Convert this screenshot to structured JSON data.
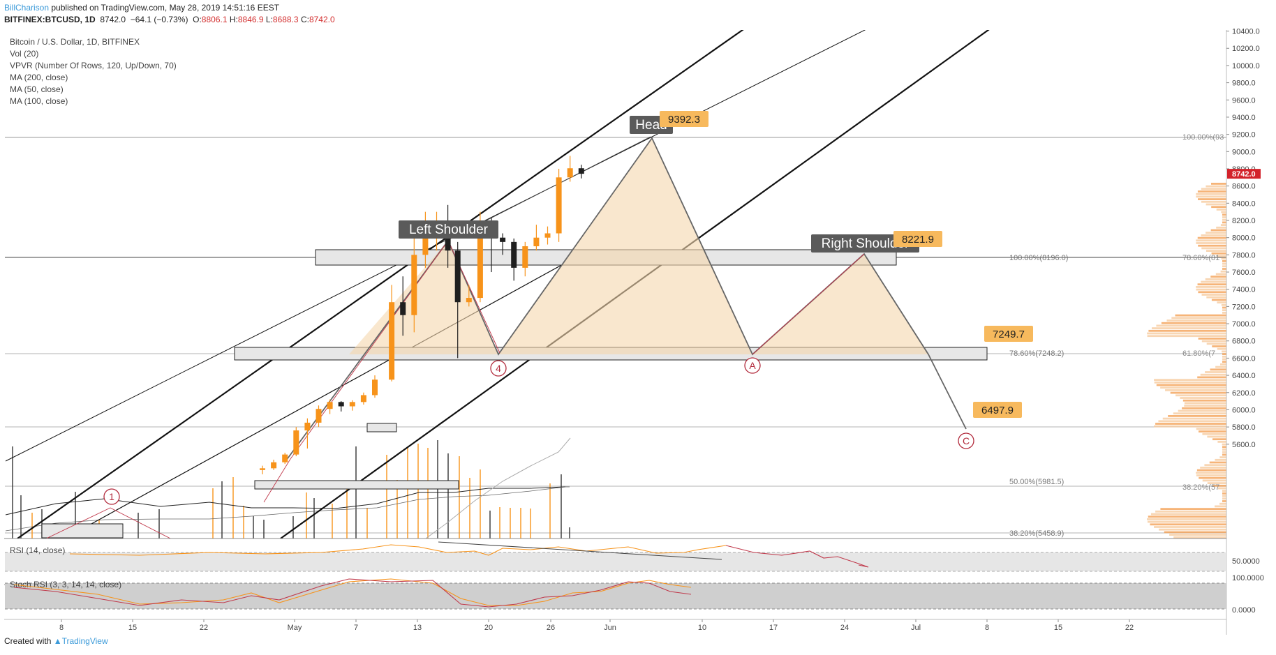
{
  "header": {
    "user": "BillCharison",
    "published": "published on TradingView.com, May 28, 2019 14:51:16 EEST",
    "symbol": "BITFINEX:BTCUSD, 1D",
    "last": "8742.0",
    "change": "−64.1 (−0.73%)",
    "o_label": "O:",
    "o": "8806.1",
    "h_label": "H:",
    "h": "8846.9",
    "l_label": "L:",
    "l": "8688.3",
    "c_label": "C:",
    "c": "8742.0"
  },
  "legend": {
    "title": "Bitcoin / U.S. Dollar, 1D, BITFINEX",
    "items": [
      "Vol (20)",
      "VPVR (Number Of Rows, 120, Up/Down, 70)",
      "MA (200, close)",
      "MA (50, close)",
      "MA (100, close)"
    ]
  },
  "footer": {
    "created": "Created with",
    "brand": "TradingView"
  },
  "colors": {
    "up": "#f7931a",
    "down": "#1f1f1f",
    "pattern_fill": "#f5d7ae",
    "price_tag": "#f7b95d",
    "marker": "#b22a3c",
    "label_bg": "#5a5a5a",
    "last_price_bg": "#d3222a"
  },
  "chart_data": {
    "type": "candlestick",
    "ylim": [
      5400,
      10450
    ],
    "y_ticks": [
      "10400.0",
      "10200.0",
      "10000.0",
      "9800.0",
      "9600.0",
      "9400.0",
      "9200.0",
      "9000.0",
      "8800.0",
      "8600.0",
      "8400.0",
      "8200.0",
      "8000.0",
      "7800.0",
      "7600.0",
      "7400.0",
      "7200.0",
      "7000.0",
      "6800.0",
      "6600.0",
      "6400.0",
      "6200.0",
      "6000.0",
      "5800.0",
      "5600.0"
    ],
    "last_price": "8742.0",
    "x_ticks": [
      "8",
      "15",
      "22",
      "May",
      "7",
      "13",
      "20",
      "26",
      "Jun",
      "10",
      "17",
      "24",
      "Jul",
      "8",
      "15",
      "22"
    ],
    "candles": [
      {
        "date": "Apr 30",
        "o": 5300,
        "h": 5350,
        "l": 5250,
        "c": 5320
      },
      {
        "date": "May 1",
        "o": 5320,
        "h": 5420,
        "l": 5300,
        "c": 5390
      },
      {
        "date": "May 2",
        "o": 5390,
        "h": 5500,
        "l": 5370,
        "c": 5480
      },
      {
        "date": "May 3",
        "o": 5480,
        "h": 5800,
        "l": 5460,
        "c": 5760
      },
      {
        "date": "May 4",
        "o": 5760,
        "h": 5900,
        "l": 5550,
        "c": 5850
      },
      {
        "date": "May 5",
        "o": 5850,
        "h": 6050,
        "l": 5800,
        "c": 6010
      },
      {
        "date": "May 6",
        "o": 6010,
        "h": 6120,
        "l": 5950,
        "c": 6090
      },
      {
        "date": "May 7",
        "o": 6090,
        "h": 6100,
        "l": 5980,
        "c": 6040
      },
      {
        "date": "May 8",
        "o": 6040,
        "h": 6110,
        "l": 5990,
        "c": 6090
      },
      {
        "date": "May 9",
        "o": 6090,
        "h": 6200,
        "l": 6060,
        "c": 6170
      },
      {
        "date": "May 10",
        "o": 6170,
        "h": 6400,
        "l": 6140,
        "c": 6350
      },
      {
        "date": "May 11",
        "o": 6350,
        "h": 7450,
        "l": 6330,
        "c": 7250
      },
      {
        "date": "May 12",
        "o": 7250,
        "h": 7550,
        "l": 6860,
        "c": 7100
      },
      {
        "date": "May 13",
        "o": 7100,
        "h": 8100,
        "l": 6900,
        "c": 7800
      },
      {
        "date": "May 14",
        "o": 7800,
        "h": 8300,
        "l": 7650,
        "c": 8050
      },
      {
        "date": "May 15",
        "o": 8050,
        "h": 8300,
        "l": 7850,
        "c": 8200
      },
      {
        "date": "May 16",
        "o": 8200,
        "h": 8380,
        "l": 7650,
        "c": 7850
      },
      {
        "date": "May 17",
        "o": 7850,
        "h": 7950,
        "l": 6600,
        "c": 7250
      },
      {
        "date": "May 18",
        "o": 7250,
        "h": 7450,
        "l": 7200,
        "c": 7300
      },
      {
        "date": "May 19",
        "o": 7300,
        "h": 8300,
        "l": 7250,
        "c": 8200
      },
      {
        "date": "May 20",
        "o": 8200,
        "h": 8230,
        "l": 7600,
        "c": 8000
      },
      {
        "date": "May 21",
        "o": 8000,
        "h": 8050,
        "l": 7800,
        "c": 7950
      },
      {
        "date": "May 22",
        "o": 7950,
        "h": 7990,
        "l": 7500,
        "c": 7650
      },
      {
        "date": "May 23",
        "o": 7650,
        "h": 7950,
        "l": 7550,
        "c": 7900
      },
      {
        "date": "May 24",
        "o": 7900,
        "h": 8150,
        "l": 7850,
        "c": 8000
      },
      {
        "date": "May 25",
        "o": 8000,
        "h": 8130,
        "l": 7920,
        "c": 8050
      },
      {
        "date": "May 26",
        "o": 8050,
        "h": 8800,
        "l": 7950,
        "c": 8700
      },
      {
        "date": "May 27",
        "o": 8700,
        "h": 8950,
        "l": 8650,
        "c": 8806
      },
      {
        "date": "May 28",
        "o": 8806.1,
        "h": 8846.9,
        "l": 8688.3,
        "c": 8742.0
      }
    ],
    "annotations": {
      "pattern": [
        "Left Shoulder",
        "Head",
        "Right Shoulder"
      ],
      "price_tags": [
        "9392.3",
        "8221.9",
        "7249.7",
        "6497.9"
      ],
      "wave_labels": [
        "1",
        "4",
        "A",
        "C"
      ],
      "fib_labels_left": [
        "100.00%(8196.0)",
        "78.60%(7248.2)",
        "50.00%(5981.5)",
        "38.20%(5458.9)"
      ],
      "fib_labels_right": [
        "100.00%(93",
        "78.60%(81",
        "61.80%(7",
        "38.20%(57"
      ]
    },
    "rsi": {
      "label": "RSI (14, close)",
      "ticks": [
        "50.0000"
      ]
    },
    "stoch_rsi": {
      "label": "Stoch RSI (3, 3, 14, 14, close)",
      "ticks": [
        "100.0000",
        "0.0000"
      ]
    }
  }
}
